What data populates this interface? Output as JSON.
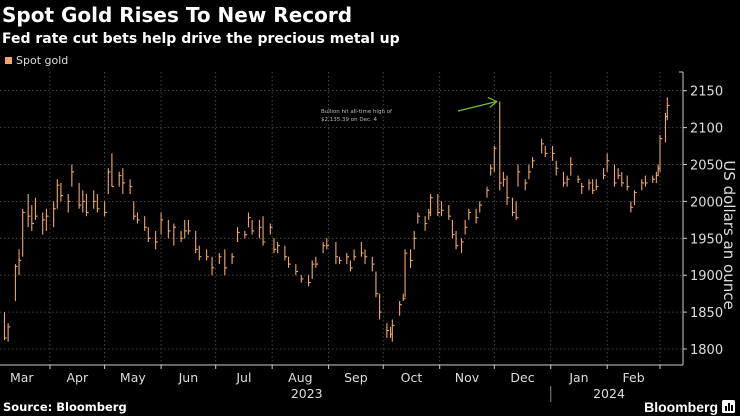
{
  "header": {
    "title": "Spot Gold Rises To New Record",
    "subtitle": "Fed rate cut bets help drive the precious metal up"
  },
  "footer": {
    "source": "Source: Bloomberg",
    "brand": "Bloomberg"
  },
  "chart_data": {
    "type": "ohlc-bar",
    "title": "Spot Gold Rises To New Record",
    "subtitle": "Fed rate cut bets help drive the precious metal up",
    "ylabel": "US dollars an ounce",
    "ylim": [
      1790,
      2170
    ],
    "yticks": [
      "1800",
      "1850",
      "1900",
      "1950",
      "2000",
      "2050",
      "2100",
      "2150"
    ],
    "yaxis_side": "right",
    "grid": true,
    "legend": {
      "position": "top-left",
      "entries": [
        {
          "name": "Spot gold",
          "color": "#f0a868"
        }
      ]
    },
    "xticks": [
      "Mar",
      "Apr",
      "May",
      "Jun",
      "Jul",
      "Aug",
      "Sep",
      "Oct",
      "Nov",
      "Dec",
      "Jan",
      "Feb"
    ],
    "xyears": [
      "2023",
      "2024"
    ],
    "series_color": "#f0a868",
    "annotation": {
      "lines": [
        "Bullion hit all-time high of",
        "$2,135.39 on Dec. 4"
      ],
      "date": "2023-12-04",
      "value": 2135.39,
      "arrow_color": "#7dbb2f"
    },
    "series": [
      {
        "name": "Spot gold",
        "fields": [
          "date",
          "low",
          "high",
          "close"
        ],
        "bars": [
          [
            "2023-03-03",
            1840,
            1860,
            1855
          ],
          [
            "2023-03-07",
            1812,
            1850,
            1815
          ],
          [
            "2023-03-09",
            1810,
            1835,
            1830
          ],
          [
            "2023-03-13",
            1865,
            1915,
            1912
          ],
          [
            "2023-03-15",
            1900,
            1935,
            1920
          ],
          [
            "2023-03-17",
            1925,
            1990,
            1985
          ],
          [
            "2023-03-20",
            1965,
            2010,
            1980
          ],
          [
            "2023-03-22",
            1960,
            1995,
            1970
          ],
          [
            "2023-03-24",
            1975,
            2005,
            1980
          ],
          [
            "2023-03-28",
            1955,
            1985,
            1975
          ],
          [
            "2023-03-30",
            1960,
            1990,
            1980
          ],
          [
            "2023-04-03",
            1965,
            2000,
            1990
          ],
          [
            "2023-04-05",
            1990,
            2030,
            2022
          ],
          [
            "2023-04-07",
            2000,
            2025,
            2008
          ],
          [
            "2023-04-11",
            1985,
            2010,
            2000
          ],
          [
            "2023-04-13",
            2020,
            2050,
            2040
          ],
          [
            "2023-04-17",
            1990,
            2025,
            1995
          ],
          [
            "2023-04-19",
            1985,
            2015,
            2000
          ],
          [
            "2023-04-21",
            1980,
            2010,
            1985
          ],
          [
            "2023-04-25",
            1990,
            2015,
            2000
          ],
          [
            "2023-04-27",
            1985,
            2010,
            1990
          ],
          [
            "2023-05-01",
            1980,
            2000,
            1985
          ],
          [
            "2023-05-03",
            2010,
            2045,
            2040
          ],
          [
            "2023-05-05",
            2020,
            2065,
            2020
          ],
          [
            "2023-05-09",
            2020,
            2040,
            2035
          ],
          [
            "2023-05-11",
            2010,
            2045,
            2025
          ],
          [
            "2023-05-15",
            2010,
            2030,
            2020
          ],
          [
            "2023-05-17",
            1975,
            2000,
            1980
          ],
          [
            "2023-05-19",
            1970,
            1985,
            1975
          ],
          [
            "2023-05-23",
            1960,
            1980,
            1965
          ],
          [
            "2023-05-25",
            1945,
            1965,
            1950
          ],
          [
            "2023-05-29",
            1935,
            1960,
            1945
          ],
          [
            "2023-06-01",
            1955,
            1985,
            1975
          ],
          [
            "2023-06-05",
            1950,
            1975,
            1960
          ],
          [
            "2023-06-08",
            1940,
            1970,
            1965
          ],
          [
            "2023-06-12",
            1945,
            1960,
            1950
          ],
          [
            "2023-06-14",
            1950,
            1975,
            1960
          ],
          [
            "2023-06-16",
            1955,
            1975,
            1960
          ],
          [
            "2023-06-20",
            1930,
            1960,
            1935
          ],
          [
            "2023-06-22",
            1920,
            1940,
            1925
          ],
          [
            "2023-06-26",
            1920,
            1935,
            1925
          ],
          [
            "2023-06-29",
            1900,
            1925,
            1910
          ],
          [
            "2023-07-03",
            1915,
            1930,
            1925
          ],
          [
            "2023-07-06",
            1900,
            1935,
            1910
          ],
          [
            "2023-07-10",
            1915,
            1930,
            1925
          ],
          [
            "2023-07-13",
            1945,
            1965,
            1958
          ],
          [
            "2023-07-17",
            1950,
            1960,
            1955
          ],
          [
            "2023-07-19",
            1965,
            1985,
            1978
          ],
          [
            "2023-07-21",
            1955,
            1975,
            1960
          ],
          [
            "2023-07-25",
            1950,
            1975,
            1965
          ],
          [
            "2023-07-27",
            1940,
            1980,
            1945
          ],
          [
            "2023-07-31",
            1955,
            1970,
            1965
          ],
          [
            "2023-08-02",
            1930,
            1950,
            1935
          ],
          [
            "2023-08-04",
            1930,
            1945,
            1940
          ],
          [
            "2023-08-08",
            1920,
            1940,
            1925
          ],
          [
            "2023-08-10",
            1910,
            1925,
            1915
          ],
          [
            "2023-08-14",
            1900,
            1915,
            1905
          ],
          [
            "2023-08-17",
            1890,
            1900,
            1895
          ],
          [
            "2023-08-21",
            1885,
            1900,
            1890
          ],
          [
            "2023-08-23",
            1895,
            1920,
            1915
          ],
          [
            "2023-08-25",
            1910,
            1925,
            1915
          ],
          [
            "2023-08-29",
            1930,
            1945,
            1940
          ],
          [
            "2023-08-31",
            1935,
            1950,
            1940
          ],
          [
            "2023-09-05",
            1915,
            1945,
            1925
          ],
          [
            "2023-09-07",
            1915,
            1925,
            1920
          ],
          [
            "2023-09-11",
            1915,
            1930,
            1925
          ],
          [
            "2023-09-13",
            1905,
            1920,
            1910
          ],
          [
            "2023-09-15",
            1920,
            1935,
            1925
          ],
          [
            "2023-09-19",
            1925,
            1945,
            1930
          ],
          [
            "2023-09-21",
            1915,
            1935,
            1925
          ],
          [
            "2023-09-25",
            1905,
            1925,
            1915
          ],
          [
            "2023-09-27",
            1870,
            1905,
            1875
          ],
          [
            "2023-09-29",
            1840,
            1875,
            1850
          ],
          [
            "2023-10-03",
            1815,
            1835,
            1825
          ],
          [
            "2023-10-05",
            1815,
            1830,
            1820
          ],
          [
            "2023-10-06",
            1810,
            1840,
            1832
          ],
          [
            "2023-10-10",
            1845,
            1865,
            1860
          ],
          [
            "2023-10-12",
            1865,
            1875,
            1868
          ],
          [
            "2023-10-13",
            1870,
            1935,
            1930
          ],
          [
            "2023-10-16",
            1910,
            1935,
            1920
          ],
          [
            "2023-10-18",
            1935,
            1960,
            1950
          ],
          [
            "2023-10-20",
            1970,
            1985,
            1980
          ],
          [
            "2023-10-24",
            1960,
            1980,
            1970
          ],
          [
            "2023-10-26",
            1975,
            1990,
            1985
          ],
          [
            "2023-10-27",
            1980,
            2010,
            2005
          ],
          [
            "2023-10-31",
            1980,
            2010,
            1985
          ],
          [
            "2023-11-02",
            1980,
            2000,
            1988
          ],
          [
            "2023-11-06",
            1975,
            1995,
            1980
          ],
          [
            "2023-11-08",
            1950,
            1975,
            1955
          ],
          [
            "2023-11-10",
            1935,
            1960,
            1940
          ],
          [
            "2023-11-13",
            1930,
            1950,
            1945
          ],
          [
            "2023-11-15",
            1955,
            1975,
            1965
          ],
          [
            "2023-11-17",
            1975,
            1990,
            1985
          ],
          [
            "2023-11-21",
            1970,
            1990,
            1978
          ],
          [
            "2023-11-23",
            1985,
            2000,
            1995
          ],
          [
            "2023-11-27",
            2005,
            2020,
            2015
          ],
          [
            "2023-11-29",
            2035,
            2050,
            2045
          ],
          [
            "2023-12-01",
            2040,
            2075,
            2072
          ],
          [
            "2023-12-04",
            2015,
            2135.39,
            2025
          ],
          [
            "2023-12-06",
            2020,
            2040,
            2030
          ],
          [
            "2023-12-08",
            1995,
            2035,
            2005
          ],
          [
            "2023-12-11",
            1980,
            2005,
            1985
          ],
          [
            "2023-12-13",
            1975,
            2000,
            1978
          ],
          [
            "2023-12-14",
            2020,
            2050,
            2040
          ],
          [
            "2023-12-18",
            2015,
            2030,
            2025
          ],
          [
            "2023-12-20",
            2030,
            2050,
            2040
          ],
          [
            "2023-12-22",
            2045,
            2060,
            2055
          ],
          [
            "2023-12-27",
            2065,
            2085,
            2078
          ],
          [
            "2023-12-29",
            2060,
            2075,
            2065
          ],
          [
            "2024-01-02",
            2055,
            2075,
            2065
          ],
          [
            "2024-01-04",
            2035,
            2055,
            2045
          ],
          [
            "2024-01-08",
            2020,
            2040,
            2025
          ],
          [
            "2024-01-10",
            2020,
            2035,
            2030
          ],
          [
            "2024-01-12",
            2035,
            2060,
            2050
          ],
          [
            "2024-01-16",
            2025,
            2035,
            2030
          ],
          [
            "2024-01-18",
            2010,
            2025,
            2020
          ],
          [
            "2024-01-22",
            2015,
            2030,
            2025
          ],
          [
            "2024-01-24",
            2010,
            2030,
            2015
          ],
          [
            "2024-01-26",
            2015,
            2030,
            2020
          ],
          [
            "2024-01-30",
            2030,
            2045,
            2035
          ],
          [
            "2024-02-01",
            2040,
            2065,
            2055
          ],
          [
            "2024-02-05",
            2020,
            2050,
            2025
          ],
          [
            "2024-02-07",
            2030,
            2045,
            2035
          ],
          [
            "2024-02-09",
            2020,
            2040,
            2025
          ],
          [
            "2024-02-12",
            2015,
            2035,
            2020
          ],
          [
            "2024-02-14",
            1985,
            2000,
            1992
          ],
          [
            "2024-02-16",
            1995,
            2015,
            2012
          ],
          [
            "2024-02-20",
            2015,
            2030,
            2025
          ],
          [
            "2024-02-22",
            2020,
            2035,
            2025
          ],
          [
            "2024-02-26",
            2025,
            2035,
            2030
          ],
          [
            "2024-02-28",
            2025,
            2040,
            2035
          ],
          [
            "2024-02-29",
            2035,
            2050,
            2045
          ],
          [
            "2024-03-01",
            2040,
            2090,
            2085
          ],
          [
            "2024-03-04",
            2080,
            2120,
            2115
          ],
          [
            "2024-03-05",
            2110,
            2141,
            2130
          ]
        ]
      }
    ]
  }
}
